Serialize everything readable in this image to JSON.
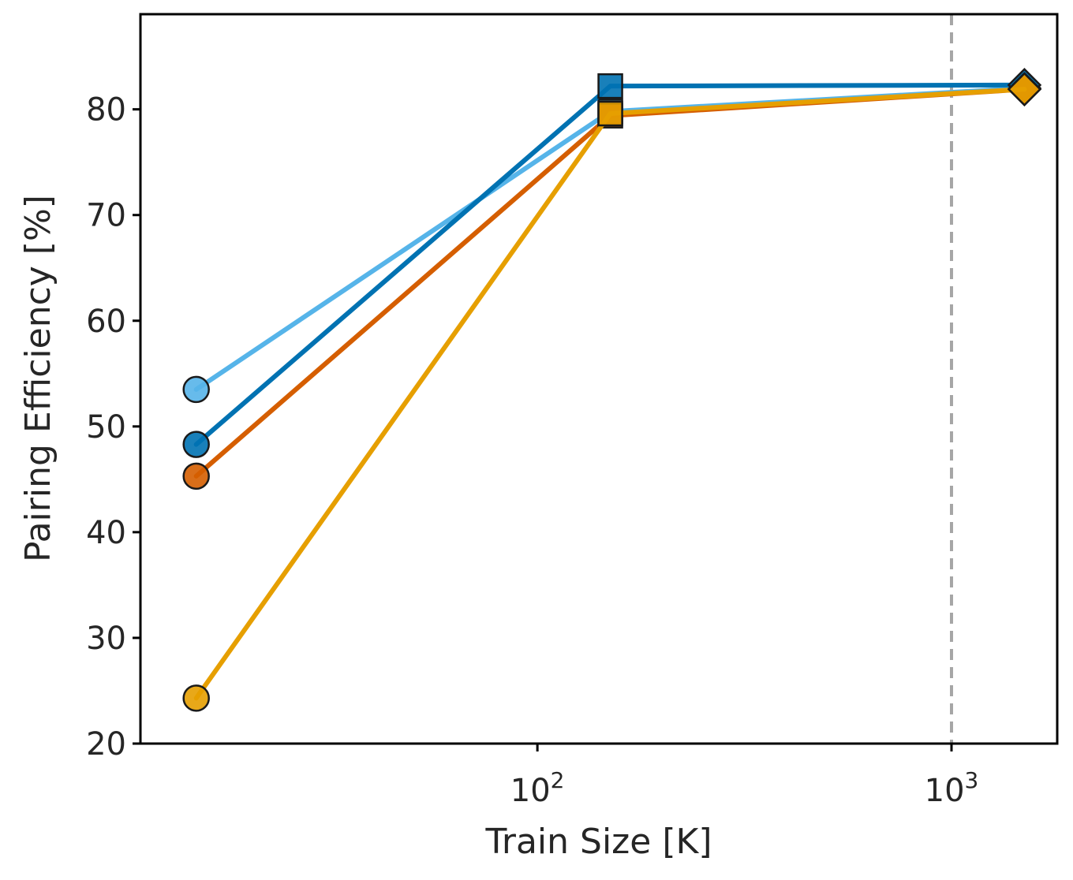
{
  "chart_data": {
    "type": "line",
    "xlabel": "Train Size [K]",
    "ylabel": "Pairing Efficiency [%]",
    "x_scale": "log",
    "xlim": [
      11,
      1800
    ],
    "ylim": [
      20,
      89
    ],
    "x_ticks": [
      {
        "value": 100,
        "base": "10",
        "exp": "2"
      },
      {
        "value": 1000,
        "base": "10",
        "exp": "3"
      }
    ],
    "y_ticks": [
      20,
      30,
      40,
      50,
      60,
      70,
      80
    ],
    "reference_line": {
      "x": 1000,
      "style": "dashed",
      "color": "#a6a6a6"
    },
    "grid": false,
    "x": [
      15,
      150,
      1500
    ],
    "markers": [
      "circle",
      "square",
      "diamond"
    ],
    "series": [
      {
        "values": [
          53.5,
          79.8,
          82.0
        ],
        "color": "#56b4e9"
      },
      {
        "values": [
          48.3,
          82.2,
          82.3
        ],
        "color": "#0072b2"
      },
      {
        "values": [
          45.3,
          79.4,
          81.9
        ],
        "color": "#d55e00"
      },
      {
        "values": [
          24.3,
          79.6,
          81.9
        ],
        "color": "#e69f00"
      }
    ]
  }
}
